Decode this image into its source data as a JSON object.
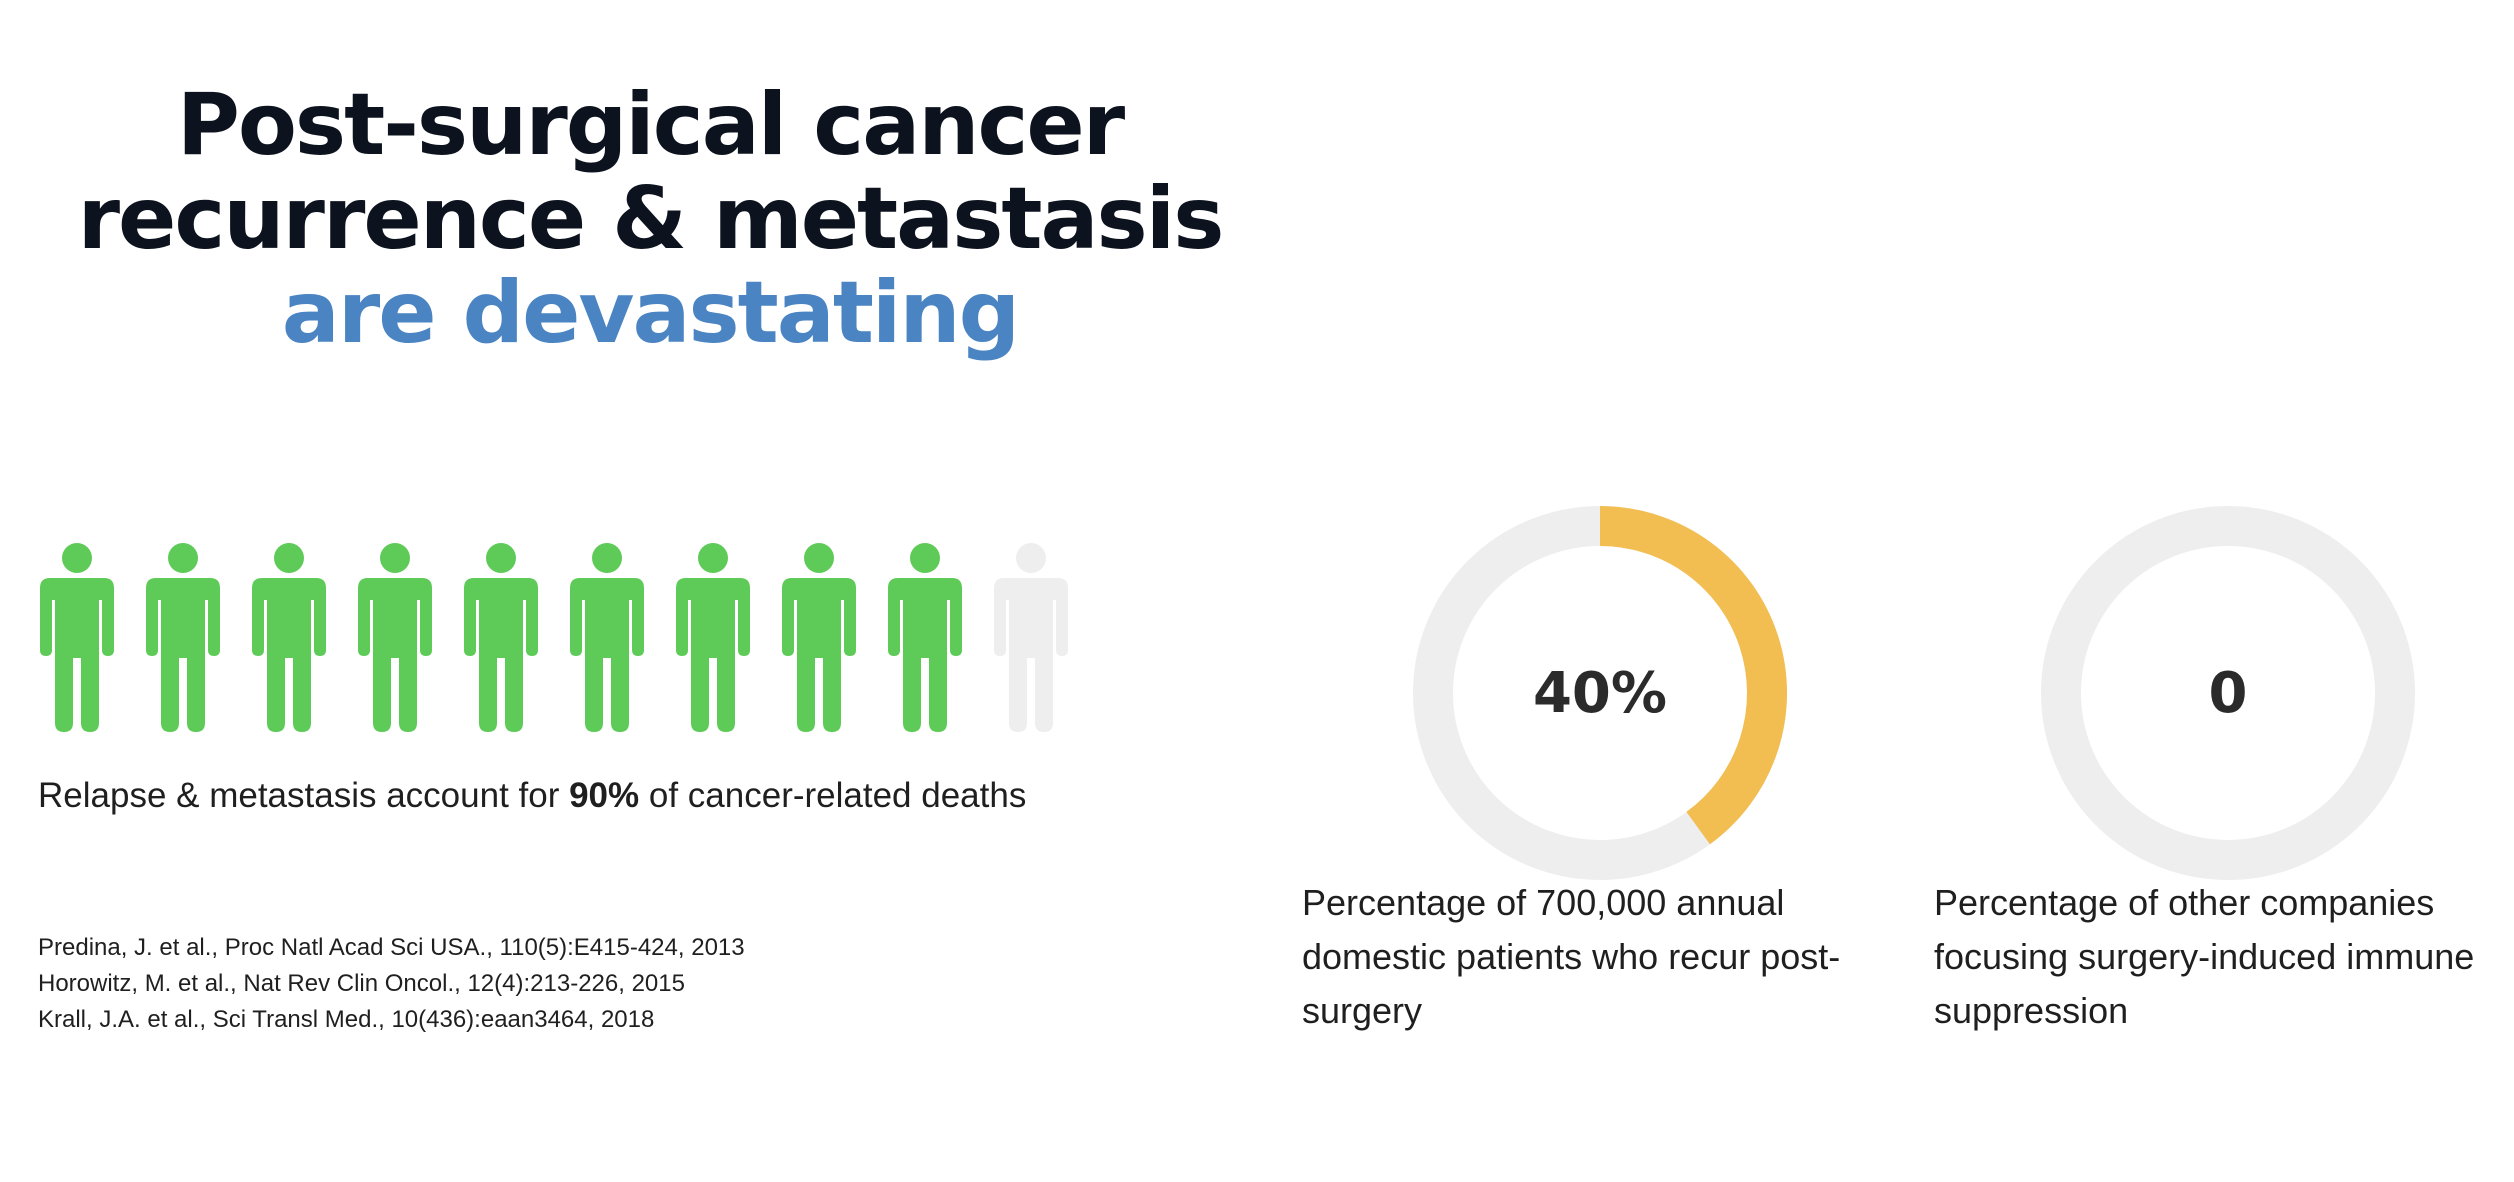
{
  "title": {
    "line1": "Post-surgical cancer",
    "line2": "recurrence & metastasis",
    "line3": "are devastating",
    "accent_color": "#4a84c2"
  },
  "people": {
    "total": 10,
    "highlighted": 9,
    "highlight_color": "#5ecb58",
    "base_color": "#eeeeee",
    "icon": "person-icon"
  },
  "caption": {
    "before": "Relapse & metastasis account for ",
    "emphasis": "90%",
    "after": " of cancer-related deaths"
  },
  "references": [
    "Predina, J. et al., Proc Natl Acad Sci USA., 110(5):E415-424, 2013",
    "Horowitz, M. et al., Nat Rev Clin Oncol., 12(4):213-226, 2015",
    "Krall, J.A. et al., Sci Transl Med., 10(436):eaan3464, 2018"
  ],
  "stats": [
    {
      "value_label": "40%",
      "fraction": 0.4,
      "description": "Percentage of 700,000 annual domestic patients who recur post-surgery"
    },
    {
      "value_label": "0",
      "fraction": 0,
      "description": "Percentage of other companies focusing surgery-induced immune suppression"
    }
  ],
  "colors": {
    "ring_track": "#eeeeee",
    "ring_fill": "#f2bd51"
  }
}
